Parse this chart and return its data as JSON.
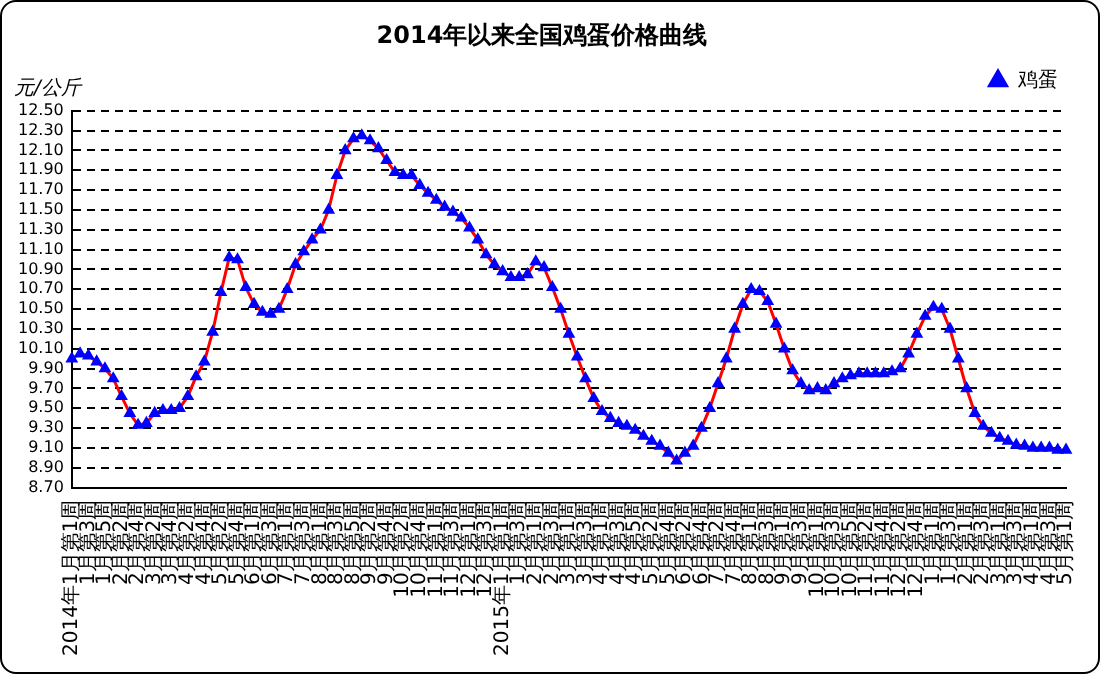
{
  "chart_data": {
    "type": "line",
    "title": "2014年以来全国鸡蛋价格曲线",
    "ylabel": "元/公斤",
    "categories": [
      "2014年1月第1周",
      null,
      "1月第3周",
      null,
      "1月第5周",
      null,
      "2月第2周",
      null,
      "2月第4周",
      null,
      "3月第2周",
      null,
      "3月第4周",
      null,
      "4月第2周",
      null,
      "4月第4周",
      null,
      "5月第2周",
      null,
      "5月第4周",
      null,
      "6月第1周",
      null,
      "6月第3周",
      null,
      "7月第1周",
      null,
      "7月第3周",
      null,
      "8月第1周",
      null,
      "8月第3周",
      null,
      "8月第5周",
      null,
      "9月第2周",
      null,
      "9月第4周",
      null,
      "10月第2周",
      null,
      "10月第4周",
      null,
      "11月第1周",
      null,
      "11月第3周",
      null,
      "12月第1周",
      null,
      "12月第3周",
      null,
      "2015年1月第1周",
      null,
      "1月第3周",
      null,
      "2月第1周",
      null,
      "2月第3周",
      null,
      "3月第1周",
      null,
      "3月第3周",
      null,
      "4月第1周",
      null,
      "4月第3周",
      null,
      "4月第5周",
      null,
      "5月第2周",
      null,
      "5月第4周",
      null,
      "6月第2周",
      null,
      "6月第4周",
      null,
      "7月第2周",
      null,
      "7月第4周",
      null,
      "8月第1周",
      null,
      "8月第3周",
      null,
      "9月第1周",
      null,
      "9月第3周",
      null,
      "10月第1周",
      null,
      "10月第3周",
      null,
      "10月第5周",
      null,
      "11月第2周",
      null,
      "11月第4周",
      null,
      "12月第2周",
      null,
      "12月第4周",
      null,
      "1月第1周",
      null,
      "1月第3周",
      null,
      "2月第1周",
      null,
      "2月第3周",
      null,
      "3月第1周",
      null,
      "3月第3周",
      null,
      "4月第1周",
      null,
      "4月第3周",
      null,
      "5月第1周"
    ],
    "series": [
      {
        "name": "鸡蛋",
        "color": "#0000ff",
        "values": [
          10.0,
          10.05,
          10.03,
          9.97,
          9.9,
          9.8,
          9.62,
          9.45,
          9.33,
          9.35,
          9.45,
          9.48,
          9.48,
          9.5,
          9.62,
          9.82,
          9.97,
          10.27,
          10.67,
          11.02,
          11.0,
          10.72,
          10.55,
          10.47,
          10.45,
          10.5,
          10.7,
          10.95,
          11.08,
          11.2,
          11.3,
          11.5,
          11.85,
          12.1,
          12.22,
          12.25,
          12.2,
          12.12,
          12.0,
          11.88,
          11.85,
          11.85,
          11.75,
          11.67,
          11.6,
          11.53,
          11.48,
          11.42,
          11.32,
          11.2,
          11.05,
          10.95,
          10.88,
          10.82,
          10.82,
          10.85,
          10.98,
          10.92,
          10.72,
          10.5,
          10.25,
          10.02,
          9.8,
          9.6,
          9.47,
          9.4,
          9.35,
          9.32,
          9.28,
          9.22,
          9.17,
          9.12,
          9.05,
          8.97,
          9.05,
          9.12,
          9.3,
          9.5,
          9.75,
          10.0,
          10.3,
          10.55,
          10.7,
          10.68,
          10.58,
          10.35,
          10.1,
          9.88,
          9.75,
          9.68,
          9.7,
          9.68,
          9.75,
          9.8,
          9.83,
          9.85,
          9.85,
          9.85,
          9.85,
          9.87,
          9.9,
          10.05,
          10.25,
          10.43,
          10.52,
          10.5,
          10.3,
          10.0,
          9.7,
          9.45,
          9.32,
          9.25,
          9.2,
          9.17,
          9.13,
          9.12,
          9.1,
          9.1,
          9.1,
          9.08,
          9.08
        ]
      }
    ],
    "ylim": [
      8.7,
      12.5
    ],
    "yticks": [
      {
        "value": 8.7,
        "label": "8.70"
      },
      {
        "value": 8.9,
        "label": "8.90"
      },
      {
        "value": 9.1,
        "label": "9.10"
      },
      {
        "value": 9.3,
        "label": "9.30"
      },
      {
        "value": 9.5,
        "label": "9.50"
      },
      {
        "value": 9.7,
        "label": "9.70"
      },
      {
        "value": 9.9,
        "label": "9.90"
      },
      {
        "value": 10.1,
        "label": "10.10"
      },
      {
        "value": 10.3,
        "label": "10.30"
      },
      {
        "value": 10.5,
        "label": "10.50"
      },
      {
        "value": 10.7,
        "label": "10.70"
      },
      {
        "value": 10.9,
        "label": "10.90"
      },
      {
        "value": 11.1,
        "label": "11.10"
      },
      {
        "value": 11.3,
        "label": "11.30"
      },
      {
        "value": 11.5,
        "label": "11.50"
      },
      {
        "value": 11.7,
        "label": "11.70"
      },
      {
        "value": 11.9,
        "label": "11.90"
      },
      {
        "value": 12.1,
        "label": "12.10"
      },
      {
        "value": 12.3,
        "label": "12.30"
      },
      {
        "value": 12.5,
        "label": "12.50"
      }
    ],
    "grid": "y",
    "legend": "top right",
    "marker": "triangle",
    "line_style": "solid"
  }
}
